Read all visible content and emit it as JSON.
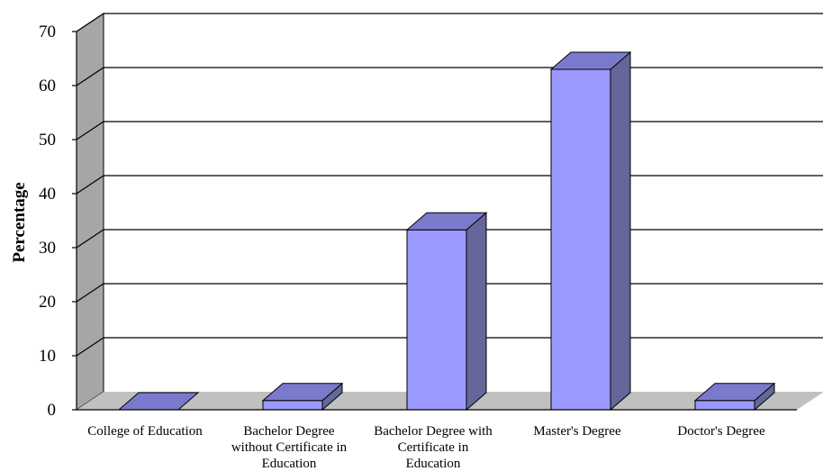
{
  "chart_data": {
    "type": "bar",
    "style": "3d",
    "categories": [
      [
        "College of Education"
      ],
      [
        "Bachelor Degree",
        "without Certificate in",
        "Education"
      ],
      [
        "Bachelor Degree with",
        "Certificate in",
        "Education"
      ],
      [
        "Master's Degree"
      ],
      [
        "Doctor's Degree"
      ]
    ],
    "values": [
      0,
      1.7,
      33.3,
      63.0,
      1.7
    ],
    "ylabel": "Percentage",
    "ylim": [
      0,
      70
    ],
    "yticks": [
      0,
      10,
      20,
      30,
      40,
      50,
      60,
      70
    ],
    "grid": true,
    "legend": "none",
    "colors": {
      "bar_front": "#9999ff",
      "bar_top": "#7a7acc",
      "bar_side": "#666699",
      "wall": "#ffffff",
      "side_wall": "#a6a6a6",
      "floor": "#c0c0c0",
      "grid": "#000000"
    }
  }
}
